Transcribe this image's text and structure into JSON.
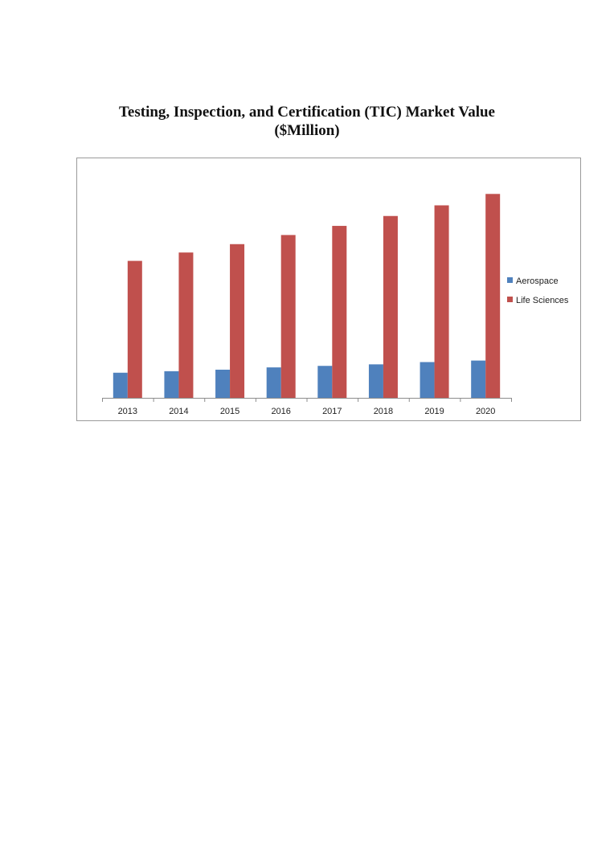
{
  "page": {
    "title_line1": "Testing, Inspection, and Certification (TIC) Market Value",
    "title_line2": "($Million)"
  },
  "chart_data": {
    "type": "bar",
    "title": "Testing, Inspection, and Certification (TIC) Market Value ($Million)",
    "categories": [
      "2013",
      "2014",
      "2015",
      "2016",
      "2017",
      "2018",
      "2019",
      "2020"
    ],
    "series": [
      {
        "name": "Aerospace",
        "color": "#4f81bd",
        "values": [
          33,
          35,
          37,
          40,
          42,
          44,
          47,
          49
        ]
      },
      {
        "name": "Life Sciences",
        "color": "#c0504d",
        "values": [
          180,
          191,
          202,
          214,
          226,
          239,
          253,
          268
        ]
      }
    ],
    "xlabel": "",
    "ylabel": "",
    "ylim": [
      0,
      300
    ],
    "grid": false,
    "legend": "right"
  }
}
